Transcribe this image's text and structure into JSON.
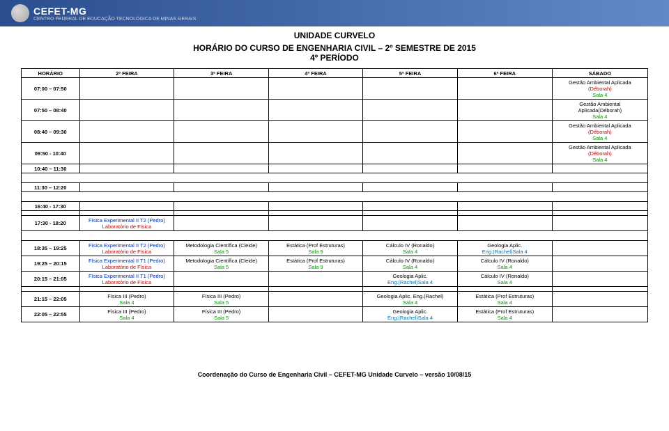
{
  "banner": {
    "logo_text": "CEFET-MG",
    "logo_sub": "CENTRO FEDERAL DE EDUCAÇÃO TECNOLÓGICA DE MINAS GERAIS"
  },
  "titles": {
    "unit": "UNIDADE CURVELO",
    "course": "HORÁRIO DO CURSO DE ENGENHARIA CIVIL – 2º SEMESTRE DE 2015",
    "period": "4º PERÍODO"
  },
  "headers": {
    "time": "HORÁRIO",
    "d2": "2ª FEIRA",
    "d3": "3ª FEIRA",
    "d4": "4ª FEIRA",
    "d5": "5ª FEIRA",
    "d6": "6ª FEIRA",
    "sat": "SÁBADO"
  },
  "times": {
    "r1": "07:00 – 07:50",
    "r2": "07:50 – 08:40",
    "r3": "08:40 – 09:30",
    "r4": "09:50 - 10:40",
    "r5": "10:40 – 11:30",
    "r6": "11:30 – 12:20",
    "r7": "16:40 - 17:30",
    "r8": "17:30 - 18:20",
    "r9": "18:35 – 19:25",
    "r10": "19:25 – 20:15",
    "r11": "20:15 – 21:05",
    "r12": "21:15 – 22:05",
    "r13": "22:05 – 22:55"
  },
  "cells": {
    "sat1_l1": "Gestão Ambiental Aplicada",
    "sat1_l2": "(Déborah)",
    "sat1_l3": "Sala 4",
    "sat2_l1": "Gestão Ambiental",
    "sat2_l2": "Aplicada(Déborah)",
    "sat2_l3": "Sala 4",
    "sat3_l1": "Gestão Ambiental Aplicada",
    "sat3_l2": "(Déborah)",
    "sat3_l3": "Sala 4",
    "sat4_l1": "Gestão Ambiental Aplicada",
    "sat4_l2": "(Déborah)",
    "sat4_l3": "Sala 4",
    "r8_d2_l1": "Física Experimental II T2 (Pedro)",
    "r8_d2_l2": "Laboratório de Física",
    "r9_d2_l1": "Física Experimental II T2 (Pedro)",
    "r9_d2_l2": "Laboratório de Física",
    "r9_d3_l1": "Metodologia Científica (Cleide)",
    "r9_d3_l2": "Sala 5",
    "r9_d4_l1": "Estática (Prof Estruturas)",
    "r9_d4_l2": "Sala 9",
    "r9_d5_l1": "Cálculo IV (Ronaldo)",
    "r9_d5_l2": "Sala 4",
    "r9_d6_l1": "Geologia Aplic.",
    "r9_d6_l2": "Eng.(Rachel)Sala 4",
    "r10_d2_l1": "Física Experimental II T1 (Pedro)",
    "r10_d2_l2": "Laboratório de Física",
    "r10_d3_l1": "Metodologia Científica (Cleide)",
    "r10_d3_l2": "Sala 5",
    "r10_d4_l1": "Estática (Prof Estruturas)",
    "r10_d4_l2": "Sala 9",
    "r10_d5_l1": "Cálculo IV (Ronaldo)",
    "r10_d5_l2": "Sala 4",
    "r10_d6_l1": "Cálculo IV (Ronaldo)",
    "r10_d6_l2": "Sala 4",
    "r11_d2_l1": "Física Experimental II T1 (Pedro)",
    "r11_d2_l2": "Laboratório de Física",
    "r11_d5_l1": "Geologia Aplic.",
    "r11_d5_l2": "Eng.(Rachel)Sala 4",
    "r11_d6_l1": "Cálculo IV (Ronaldo)",
    "r11_d6_l2": "Sala 4",
    "r12_d2_l1": "Física III (Pedro)",
    "r12_d2_l2": "Sala 4",
    "r12_d3_l1": "Física III (Pedro)",
    "r12_d3_l2": "Sala 5",
    "r12_d5_l1": "Geologia Aplic. Eng.(Rachel)",
    "r12_d5_l2": "Sala 4",
    "r12_d6_l1": "Estática (Prof Estruturas)",
    "r12_d6_l2": "Sala 4",
    "r13_d2_l1": "Física III (Pedro)",
    "r13_d2_l2": "Sala 4",
    "r13_d3_l1": "Física III (Pedro)",
    "r13_d3_l2": "Sala 5",
    "r13_d5_l1": "Geologia Aplic.",
    "r13_d5_l2": "Eng.(Rachel)Sala 4",
    "r13_d6_l1": "Estática (Prof Estruturas)",
    "r13_d6_l2": "Sala 4"
  },
  "footer": "Coordenação do Curso de Engenharia Civil – CEFET-MG Unidade Curvelo – versão 10/08/15",
  "colors": {
    "banner_start": "#2a4d8f",
    "banner_end": "#6189c8",
    "red": "#c40000",
    "green": "#009400",
    "blue": "#0030a0",
    "teal": "#0070a8",
    "border": "#000000"
  }
}
